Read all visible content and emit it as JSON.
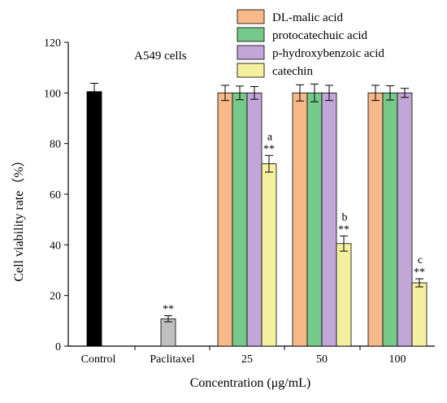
{
  "chart_data": {
    "type": "bar",
    "title": "A549 cells",
    "xlabel": "Concentration (μg/mL)",
    "ylabel": "Cell viability rate（%）",
    "ylim": [
      0,
      120
    ],
    "yticks": [
      0,
      20,
      40,
      60,
      80,
      100,
      120
    ],
    "categories": [
      "Control",
      "Paclitaxel",
      "25",
      "50",
      "100"
    ],
    "grid": false,
    "legend_position": "top-right",
    "colors": {
      "control": "#000000",
      "paclitaxel": "#c0c0c0",
      "DL-malic acid": "#f8b98a",
      "protocatechuic acid": "#77c98a",
      "p-hydroxybenzoic acid": "#c3a6d8",
      "catechin": "#f4f0a0"
    },
    "series": [
      {
        "name": "Control",
        "category": "Control",
        "value": 100.5,
        "error": 3.3,
        "annotation": ""
      },
      {
        "name": "Paclitaxel",
        "category": "Paclitaxel",
        "value": 10.8,
        "error": 1.2,
        "annotation": "**"
      }
    ],
    "grouped_series": [
      {
        "name": "DL-malic acid",
        "values": [
          100,
          100,
          100
        ],
        "errors": [
          3,
          3.2,
          3
        ],
        "annotations": [
          "",
          "",
          ""
        ]
      },
      {
        "name": "protocatechuic acid",
        "values": [
          100,
          100,
          100
        ],
        "errors": [
          2.7,
          3.5,
          2.8
        ],
        "annotations": [
          "",
          "",
          ""
        ]
      },
      {
        "name": "p-hydroxybenzoic acid",
        "values": [
          100,
          100,
          100
        ],
        "errors": [
          2.5,
          3,
          1.8
        ],
        "annotations": [
          "",
          "",
          ""
        ]
      },
      {
        "name": "catechin",
        "values": [
          72,
          40.5,
          25
        ],
        "errors": [
          3.3,
          3,
          1.6
        ],
        "annotations": [
          "a\n**",
          "b\n**",
          "c\n**"
        ]
      }
    ]
  }
}
